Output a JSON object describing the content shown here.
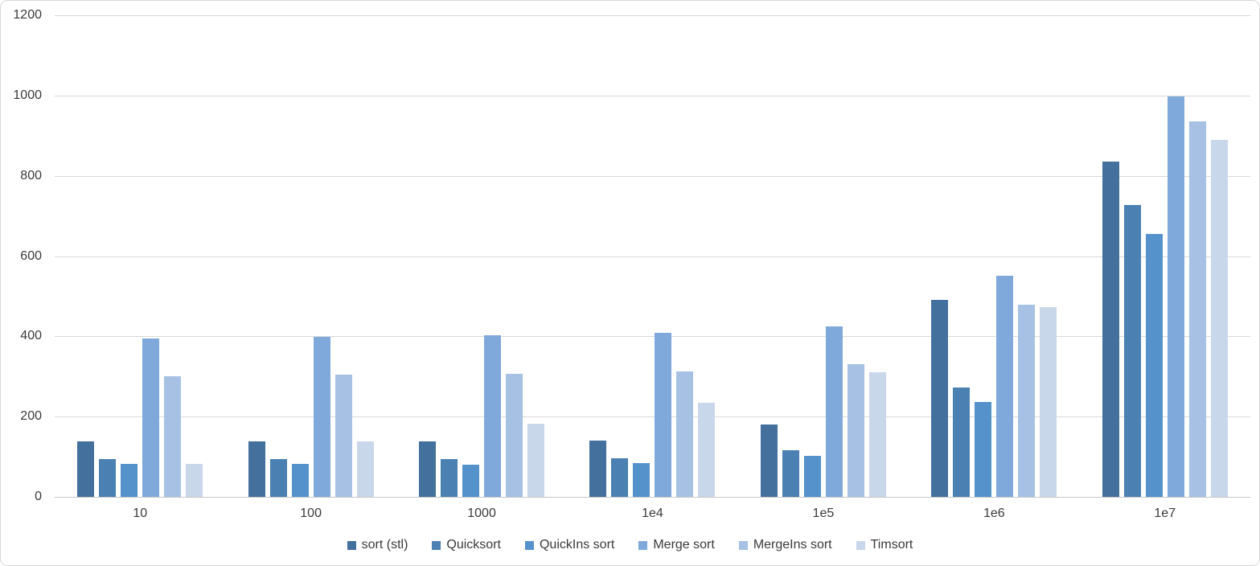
{
  "chart_data": {
    "type": "bar",
    "title": "",
    "xlabel": "",
    "ylabel": "",
    "categories": [
      "10",
      "100",
      "1000",
      "1e4",
      "1e5",
      "1e6",
      "1e7"
    ],
    "series": [
      {
        "name": "sort (stl)",
        "color": "#44709D",
        "values": [
          138,
          138,
          139,
          141,
          180,
          491,
          835
        ]
      },
      {
        "name": "Quicksort",
        "color": "#4A80B2",
        "values": [
          95,
          94,
          94,
          97,
          117,
          272,
          727
        ]
      },
      {
        "name": "QuickIns sort",
        "color": "#5592CB",
        "values": [
          82,
          82,
          81,
          85,
          103,
          237,
          655
        ]
      },
      {
        "name": "Merge sort",
        "color": "#7FA9DB",
        "values": [
          394,
          398,
          402,
          408,
          424,
          550,
          998
        ]
      },
      {
        "name": "MergeIns sort",
        "color": "#A6C1E3",
        "values": [
          301,
          304,
          306,
          312,
          331,
          479,
          935
        ]
      },
      {
        "name": "Timsort",
        "color": "#C9D7EB",
        "values": [
          83,
          138,
          182,
          234,
          311,
          472,
          890
        ]
      }
    ],
    "y_axis": {
      "min": 0,
      "max": 1200,
      "step": 200,
      "tick_labels": [
        "0",
        "200",
        "400",
        "600",
        "800",
        "1000",
        "1200"
      ]
    },
    "legend_position": "bottom",
    "grid": true,
    "colors": {
      "gridline": "#d9d9d9",
      "axis_line": "#c6c6c6",
      "background": "#ffffff",
      "border": "#d9d9d9",
      "text": "#3a3a3a"
    }
  }
}
